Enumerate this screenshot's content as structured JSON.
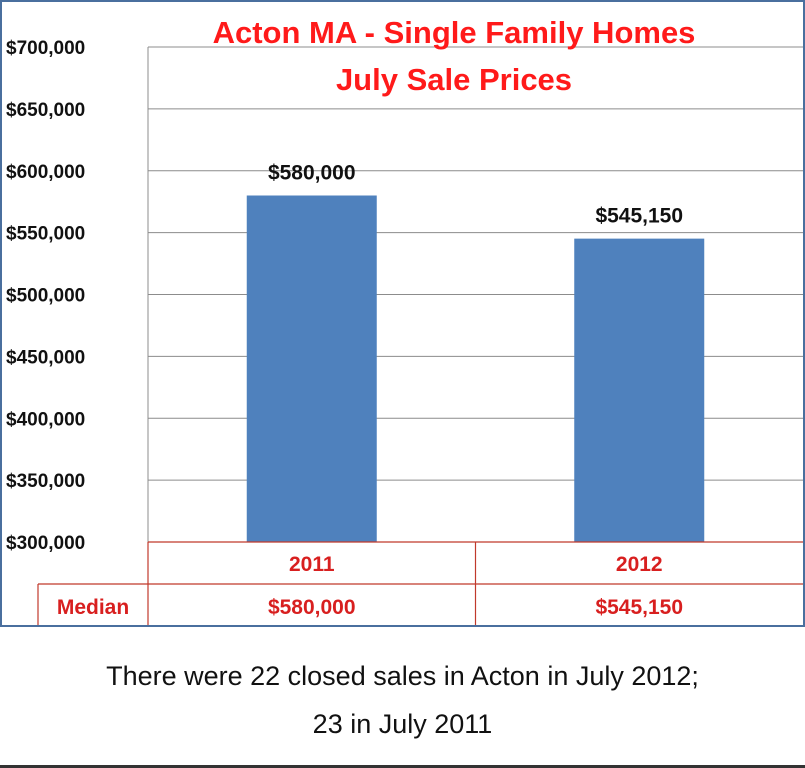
{
  "chart_data": {
    "type": "bar",
    "title_lines": [
      "Acton MA - Single Family Homes",
      "July Sale Prices"
    ],
    "categories": [
      "2011",
      "2012"
    ],
    "values": [
      580000,
      545150
    ],
    "data_labels": [
      "$580,000",
      "$545,150"
    ],
    "ylim": [
      300000,
      700000
    ],
    "ytick_step": 50000,
    "ytick_labels": [
      "$700,000",
      "$650,000",
      "$600,000",
      "$550,000",
      "$500,000",
      "$450,000",
      "$400,000",
      "$350,000",
      "$300,000"
    ],
    "grid": true,
    "data_table": {
      "row_label": "Median",
      "values": [
        "$580,000",
        "$545,150"
      ]
    }
  },
  "colors": {
    "bar": "#4f81bd",
    "title": "#ff1a1a",
    "table_text": "#d81f1f",
    "table_lines": "#c0392b",
    "gridline": "#8c8c8c",
    "frame": "#4a6f9e"
  },
  "caption": {
    "line1": "There were 22 closed sales in Acton in July 2012;",
    "line2": "23 in July 2011"
  }
}
